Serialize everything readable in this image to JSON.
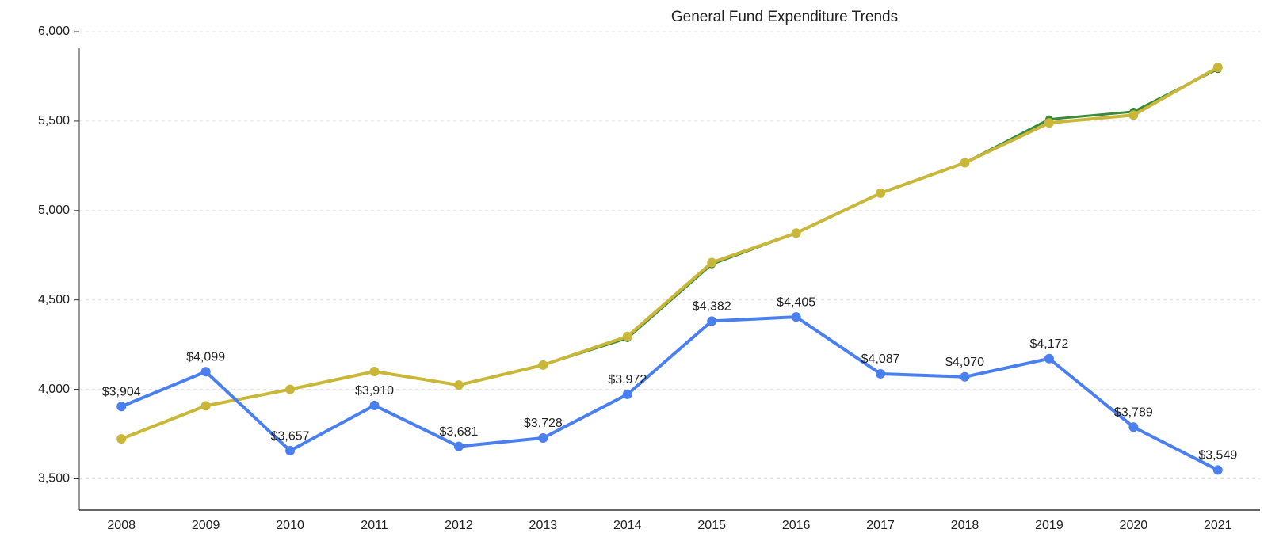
{
  "chart_data": {
    "type": "line",
    "title": "General Fund Expenditure Trends",
    "categories": [
      "2008",
      "2009",
      "2010",
      "2011",
      "2012",
      "2013",
      "2014",
      "2015",
      "2016",
      "2017",
      "2018",
      "2019",
      "2020",
      "2021"
    ],
    "series": [
      {
        "color": "#3a8a3a",
        "values": [
          3723,
          3908,
          4000,
          4100,
          4024,
          4136,
          4286,
          4699,
          4874,
          5097,
          5267,
          5510,
          5553,
          5791
        ]
      },
      {
        "color": "#c9b73a",
        "values": [
          3723,
          3908,
          4000,
          4100,
          4024,
          4136,
          4296,
          4709,
          4874,
          5097,
          5267,
          5490,
          5534,
          5800
        ]
      },
      {
        "color": "#4a7ff0",
        "values": [
          3904,
          4099,
          3657,
          3910,
          3681,
          3728,
          3972,
          4382,
          4405,
          4087,
          4070,
          4172,
          3789,
          3549
        ],
        "value_labels": [
          "$3,904",
          "$4,099",
          "$3,657",
          "$3,910",
          "$3,681",
          "$3,728",
          "$3,972",
          "$4,382",
          "$4,405",
          "$4,087",
          "$4,070",
          "$4,172",
          "$3,789",
          "$3,549"
        ]
      }
    ],
    "ylim": [
      3325,
      6000
    ],
    "yticks": [
      {
        "value": 3500,
        "label": "3,500"
      },
      {
        "value": 4000,
        "label": "4,000"
      },
      {
        "value": 4500,
        "label": "4,500"
      },
      {
        "value": 5000,
        "label": "5,000"
      },
      {
        "value": 5500,
        "label": "5,500"
      },
      {
        "value": 6000,
        "label": "6,000"
      }
    ],
    "grid": true
  }
}
